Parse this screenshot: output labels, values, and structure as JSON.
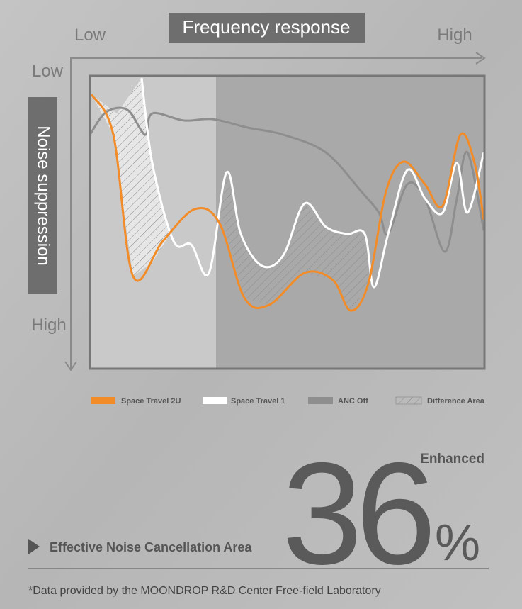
{
  "header": {
    "title": "Frequency response",
    "x_low": "Low",
    "x_high": "High"
  },
  "y_axis": {
    "title": "Noise suppression",
    "low": "Low",
    "high": "High"
  },
  "legend": [
    "Space Travel 2U",
    "Space Travel 1",
    "ANC Off",
    "Difference Area"
  ],
  "highlight": {
    "badge": "Enhanced",
    "number": 36,
    "unit": "%",
    "caption": "Effective Noise Cancellation Area"
  },
  "footnote": "*Data provided by the MOONDROP R&D Center Free-field Laboratory"
}
